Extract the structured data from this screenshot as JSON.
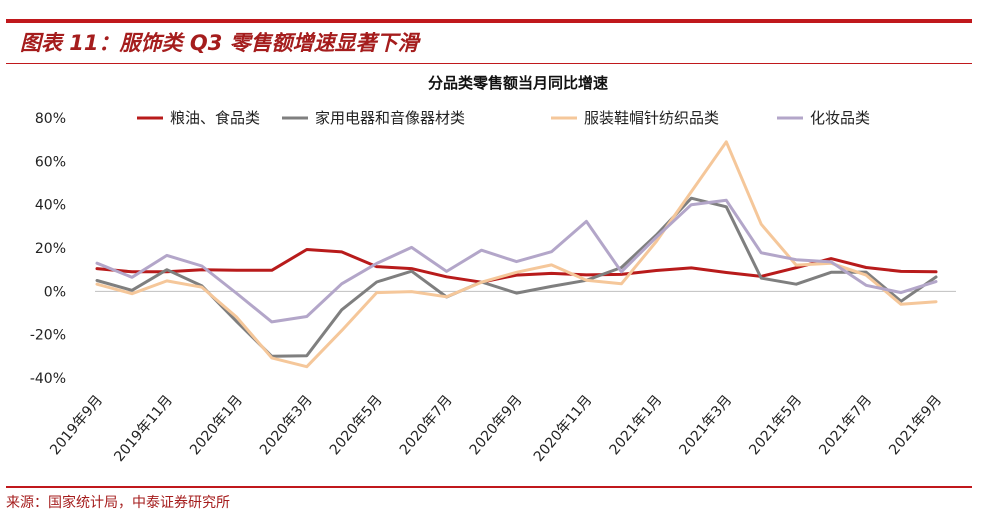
{
  "header": {
    "title": "图表 11：服饰类 Q3 零售额增速显著下滑",
    "accent_color": "#c0181c"
  },
  "source_note": "来源：国家统计局，中泰证券研究所",
  "chart_data": {
    "type": "line",
    "title": "分品类零售额当月同比增速",
    "xlabel": "",
    "ylabel": "",
    "ylim": [
      -40,
      80
    ],
    "y_ticks": [
      "80%",
      "60%",
      "40%",
      "20%",
      "0%",
      "-20%",
      "-40%"
    ],
    "x": [
      "2019年9月",
      "2019年10月",
      "2019年11月",
      "2019年12月",
      "2020年1月",
      "2020年2月",
      "2020年3月",
      "2020年4月",
      "2020年5月",
      "2020年6月",
      "2020年7月",
      "2020年8月",
      "2020年9月",
      "2020年10月",
      "2020年11月",
      "2020年12月",
      "2021年1月",
      "2021年2月",
      "2021年3月",
      "2021年4月",
      "2021年5月",
      "2021年6月",
      "2021年7月",
      "2021年8月",
      "2021年9月"
    ],
    "x_tick_labels": [
      "2019年9月",
      "2019年11月",
      "2020年1月",
      "2020年3月",
      "2020年5月",
      "2020年7月",
      "2020年9月",
      "2020年11月",
      "2021年1月",
      "2021年3月",
      "2021年5月",
      "2021年7月",
      "2021年9月"
    ],
    "grid": false,
    "legend_position": "top",
    "series": [
      {
        "name": "粮油、食品类",
        "color": "#b81b1b",
        "values": [
          10.5,
          9.0,
          9.0,
          10.0,
          9.7,
          9.7,
          19.3,
          18.2,
          11.4,
          10.5,
          6.7,
          4.2,
          7.5,
          8.3,
          7.6,
          7.8,
          9.6,
          10.8,
          8.7,
          6.9,
          10.9,
          15.1,
          11.0,
          9.2,
          9.0
        ]
      },
      {
        "name": "家用电器和音像器材类",
        "color": "#7f7f7f",
        "values": [
          5.0,
          0.5,
          10.0,
          2.5,
          -14.0,
          -30.0,
          -29.7,
          -8.5,
          4.3,
          9.3,
          -2.6,
          4.3,
          -0.8,
          2.3,
          5.1,
          11.0,
          26.0,
          43.0,
          39.0,
          6.1,
          3.3,
          8.8,
          8.9,
          -4.6,
          6.6
        ]
      },
      {
        "name": "服装鞋帽针纺织品类",
        "color": "#f5c79a",
        "values": [
          3.3,
          -1.1,
          4.8,
          1.9,
          -12.0,
          -30.7,
          -34.8,
          -18.1,
          -0.6,
          -0.1,
          -2.5,
          4.2,
          8.8,
          12.2,
          5.1,
          3.5,
          23.0,
          46.0,
          69.0,
          31.0,
          12.1,
          13.0,
          7.5,
          -6.0,
          -4.8
        ]
      },
      {
        "name": "化妆品类",
        "color": "#b3a6c9",
        "values": [
          13.0,
          6.5,
          16.6,
          11.7,
          -1.0,
          -14.1,
          -11.6,
          3.5,
          12.9,
          20.3,
          9.2,
          19.0,
          13.7,
          18.3,
          32.3,
          9.0,
          25.0,
          40.0,
          42.0,
          17.8,
          14.6,
          13.6,
          2.8,
          -0.6,
          4.5
        ]
      }
    ]
  }
}
